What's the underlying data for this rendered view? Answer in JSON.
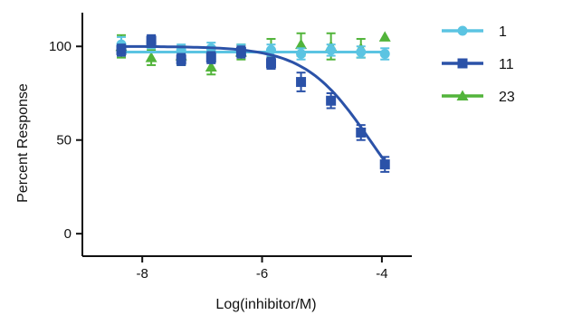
{
  "chart_data": {
    "type": "scatter",
    "xlabel": "Log(inhibitor/M)",
    "ylabel": "Percent Response",
    "xlim": [
      -9,
      -3.5
    ],
    "ylim": [
      -12,
      118
    ],
    "xticks": [
      -8,
      -6,
      -4
    ],
    "yticks": [
      0,
      50,
      100
    ],
    "xtick_labels": [
      "-8",
      "-6",
      "-4"
    ],
    "ytick_labels": [
      "0",
      "50",
      "100"
    ],
    "grid": false,
    "legend_position": "right",
    "x": [
      -8.35,
      -7.85,
      -7.35,
      -6.85,
      -6.35,
      -5.85,
      -5.35,
      -4.85,
      -4.35,
      -3.95
    ],
    "series": [
      {
        "name": "1",
        "color": "#5bc4e2",
        "marker": "circle-marker",
        "values": [
          101,
          102,
          98,
          99,
          98,
          98,
          96,
          98,
          97,
          96
        ],
        "errors": [
          4,
          3,
          3,
          3,
          3,
          3,
          3,
          3,
          3,
          3
        ],
        "fit": "flat",
        "fit_level": 97
      },
      {
        "name": "11",
        "color": "#2b52a8",
        "marker": "square-marker",
        "values": [
          98,
          103,
          93,
          94,
          97,
          91,
          81,
          71,
          54,
          37
        ],
        "errors": [
          3,
          3,
          3,
          3,
          3,
          3,
          5,
          4,
          4,
          4
        ],
        "fit": "sigmoid",
        "fit_params": {
          "top": 100,
          "bottom": 0,
          "logIC50": -4.2,
          "hill": 0.8
        }
      },
      {
        "name": "23",
        "color": "#52b43a",
        "marker": "triangle-marker",
        "values": [
          100,
          94,
          95,
          89,
          97,
          99,
          101,
          100,
          99,
          105
        ],
        "errors": [
          6,
          4,
          5,
          4,
          4,
          5,
          6,
          7,
          5,
          0
        ],
        "fit": "none"
      }
    ]
  }
}
